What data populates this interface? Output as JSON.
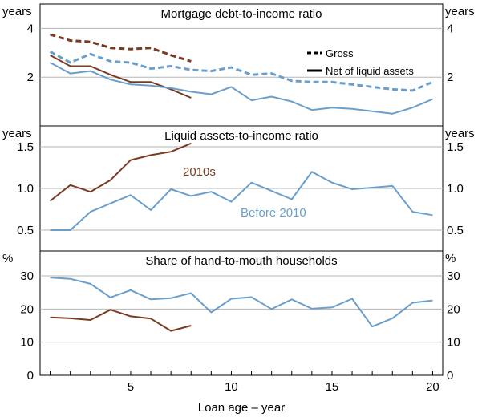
{
  "colors": {
    "brown": "#7a3b22",
    "blue": "#6a9fcb",
    "axis": "#000000",
    "grid": "#b5b5b5"
  },
  "chart_data": [
    {
      "type": "line",
      "title": "Mortgage debt-to-income ratio",
      "ylabel_left": "years",
      "ylabel_right": "years",
      "ylim": [
        0,
        5
      ],
      "yticks": [
        2,
        4
      ],
      "legend": {
        "placement": "top-right",
        "entries": [
          "Gross",
          "Net of liquid assets"
        ]
      },
      "series": [
        {
          "name": "Gross",
          "era": "2010s",
          "style": "dashed",
          "color": "brown",
          "x": [
            1,
            2,
            3,
            4,
            5,
            6,
            7,
            8
          ],
          "values": [
            3.75,
            3.5,
            3.45,
            3.2,
            3.15,
            3.2,
            2.9,
            2.65
          ]
        },
        {
          "name": "Net of liquid assets",
          "era": "2010s",
          "style": "solid",
          "color": "brown",
          "x": [
            1,
            2,
            3,
            4,
            5,
            6,
            7,
            8
          ],
          "values": [
            2.9,
            2.45,
            2.45,
            2.1,
            1.8,
            1.8,
            1.5,
            1.15
          ]
        },
        {
          "name": "Gross",
          "era": "Before 2010",
          "style": "dashed",
          "color": "blue",
          "x": [
            1,
            2,
            3,
            4,
            5,
            6,
            7,
            8,
            9,
            10,
            11,
            12,
            13,
            14,
            15,
            16,
            17,
            18,
            19,
            20
          ],
          "values": [
            3.05,
            2.6,
            2.95,
            2.65,
            2.6,
            2.35,
            2.45,
            2.3,
            2.25,
            2.4,
            2.1,
            2.15,
            1.85,
            1.8,
            1.8,
            1.7,
            1.6,
            1.5,
            1.45,
            1.8
          ]
        },
        {
          "name": "Net of liquid assets",
          "era": "Before 2010",
          "style": "solid",
          "color": "blue",
          "x": [
            1,
            2,
            3,
            4,
            5,
            6,
            7,
            8,
            9,
            10,
            11,
            12,
            13,
            14,
            15,
            16,
            17,
            18,
            19,
            20
          ],
          "values": [
            2.6,
            2.15,
            2.25,
            1.9,
            1.7,
            1.65,
            1.55,
            1.4,
            1.3,
            1.6,
            1.05,
            1.2,
            1.0,
            0.65,
            0.75,
            0.7,
            0.6,
            0.5,
            0.75,
            1.1
          ]
        }
      ]
    },
    {
      "type": "line",
      "title": "Liquid assets-to-income ratio",
      "ylabel_left": "years",
      "ylabel_right": "years",
      "ylim": [
        0.25,
        1.75
      ],
      "yticks": [
        0.5,
        1.0,
        1.5
      ],
      "ytick_labels": [
        "0.5",
        "1.0",
        "1.5"
      ],
      "annotations": [
        {
          "text": "2010s",
          "color": "brown"
        },
        {
          "text": "Before 2010",
          "color": "blue"
        }
      ],
      "series": [
        {
          "name": "2010s",
          "color": "brown",
          "x": [
            1,
            2,
            3,
            4,
            5,
            6,
            7,
            8
          ],
          "values": [
            0.85,
            1.04,
            0.96,
            1.1,
            1.34,
            1.4,
            1.44,
            1.54
          ]
        },
        {
          "name": "Before 2010",
          "color": "blue",
          "x": [
            1,
            2,
            3,
            4,
            5,
            6,
            7,
            8,
            9,
            10,
            11,
            12,
            13,
            14,
            15,
            16,
            17,
            18,
            19,
            20
          ],
          "values": [
            0.5,
            0.5,
            0.72,
            0.82,
            0.92,
            0.74,
            0.99,
            0.91,
            0.96,
            0.84,
            1.07,
            0.97,
            0.87,
            1.2,
            1.07,
            0.99,
            1.01,
            1.03,
            0.72,
            0.68
          ]
        }
      ]
    },
    {
      "type": "line",
      "title": "Share of hand-to-mouth households",
      "ylabel_left": "%",
      "ylabel_right": "%",
      "ylim": [
        0,
        37.5
      ],
      "yticks": [
        0,
        10,
        20,
        30
      ],
      "xlabel": "Loan age – year",
      "xticks": [
        5,
        10,
        15,
        20
      ],
      "xlim": [
        0.5,
        20.5
      ],
      "series": [
        {
          "name": "2010s",
          "color": "brown",
          "x": [
            1,
            2,
            3,
            4,
            5,
            6,
            7,
            8
          ],
          "values": [
            17.5,
            17.2,
            16.7,
            19.8,
            17.8,
            17.1,
            13.4,
            15.0
          ]
        },
        {
          "name": "Before 2010",
          "color": "blue",
          "x": [
            1,
            2,
            3,
            4,
            5,
            6,
            7,
            8,
            9,
            10,
            11,
            12,
            13,
            14,
            15,
            16,
            17,
            18,
            19,
            20
          ],
          "values": [
            29.5,
            29.1,
            27.6,
            23.5,
            25.7,
            22.9,
            23.3,
            24.8,
            19.0,
            23.1,
            23.6,
            20.0,
            22.9,
            20.1,
            20.5,
            23.1,
            14.7,
            17.2,
            21.9,
            22.6
          ]
        }
      ]
    }
  ]
}
